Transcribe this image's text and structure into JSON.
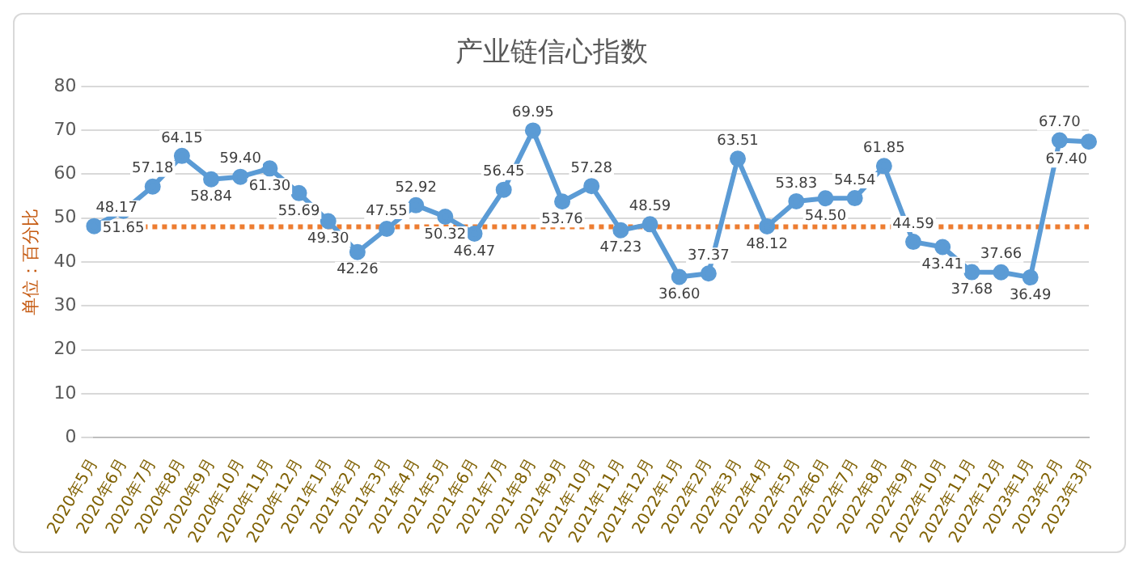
{
  "chart_data": {
    "type": "line",
    "title": "产业链信心指数",
    "ylabel": "单位：百分比",
    "categories": [
      "2020年5月",
      "2020年6月",
      "2020年7月",
      "2020年8月",
      "2020年9月",
      "2020年10月",
      "2020年11月",
      "2020年12月",
      "2021年1月",
      "2021年2月",
      "2021年3月",
      "2021年4月",
      "2021年5月",
      "2021年6月",
      "2021年7月",
      "2021年8月",
      "2021年9月",
      "2021年10月",
      "2021年11月",
      "2021年12月",
      "2022年1月",
      "2022年2月",
      "2022年3月",
      "2022年4月",
      "2022年5月",
      "2022年6月",
      "2022年7月",
      "2022年8月",
      "2022年9月",
      "2022年10月",
      "2022年11月",
      "2022年12月",
      "2023年1月",
      "2023年2月",
      "2023年3月"
    ],
    "series": [
      {
        "color": "#5b9bd5",
        "values": [
          48.17,
          51.65,
          57.18,
          64.15,
          58.84,
          59.4,
          61.3,
          55.69,
          49.3,
          42.26,
          47.55,
          52.92,
          50.32,
          46.47,
          56.45,
          69.95,
          53.76,
          57.28,
          47.23,
          48.59,
          36.6,
          37.37,
          63.51,
          48.12,
          53.83,
          54.5,
          54.54,
          61.85,
          44.59,
          43.41,
          37.68,
          37.66,
          36.49,
          67.7,
          67.4
        ],
        "value_labels": [
          "48.17",
          "51.65",
          "57.18",
          "64.15",
          "58.84",
          "59.40",
          "61.30",
          "55.69",
          "49.30",
          "42.26",
          "47.55",
          "52.92",
          "50.32",
          "46.47",
          "56.45",
          "69.95",
          "53.76",
          "57.28",
          "47.23",
          "48.59",
          "36.60",
          "37.37",
          "63.51",
          "48.12",
          "53.83",
          "54.50",
          "54.54",
          "61.85",
          "44.59",
          "43.41",
          "37.68",
          "37.66",
          "36.49",
          "67.70",
          "67.40"
        ]
      }
    ],
    "ylim": [
      0,
      80
    ],
    "yticks": [
      0,
      10,
      20,
      30,
      40,
      50,
      60,
      70,
      80
    ],
    "grid": "y",
    "marker": "circle",
    "line_style": "solid",
    "ref_lines": [
      {
        "axis": "y",
        "value": 48,
        "color": "#ed7d31",
        "line_style": "dotted"
      }
    ]
  }
}
